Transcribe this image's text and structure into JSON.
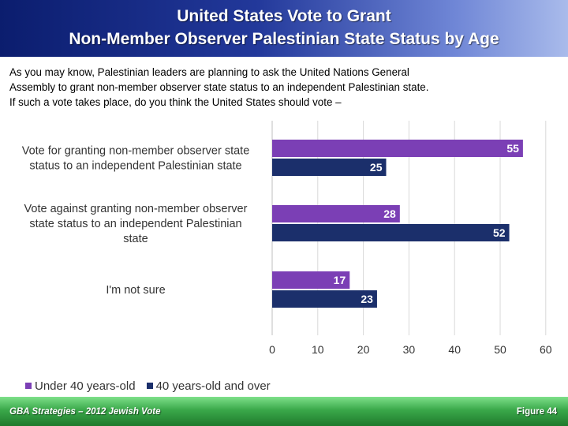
{
  "header": {
    "title_line1": "United States Vote to Grant",
    "title_line2": "Non-Member Observer Palestinian State Status by Age"
  },
  "question": {
    "line1": "As you may know, Palestinian leaders are planning to ask the United Nations General",
    "line2": "Assembly to grant non-member observer state status to an independent Palestinian state.",
    "line3": "If such a vote takes place, do you think the United States should vote –"
  },
  "chart_data": {
    "type": "bar",
    "orientation": "horizontal",
    "categories": [
      [
        "Vote for granting non-member observer state",
        "status to an independent Palestinian state"
      ],
      [
        "Vote against granting non-member observer",
        "state status to an independent Palestinian",
        "state"
      ],
      [
        "I'm not sure"
      ]
    ],
    "series": [
      {
        "name": "Under 40 years-old",
        "color": "#7b3fb5",
        "values": [
          55,
          28,
          17
        ]
      },
      {
        "name": "40 years-old and over",
        "color": "#1b2f6b",
        "values": [
          25,
          52,
          23
        ]
      }
    ],
    "xlim": [
      0,
      60
    ],
    "xticks": [
      0,
      10,
      20,
      30,
      40,
      50,
      60
    ],
    "grid": true,
    "legend_position": "bottom-left"
  },
  "footer": {
    "left": "GBA Strategies – 2012 Jewish Vote",
    "right": "Figure  44"
  }
}
